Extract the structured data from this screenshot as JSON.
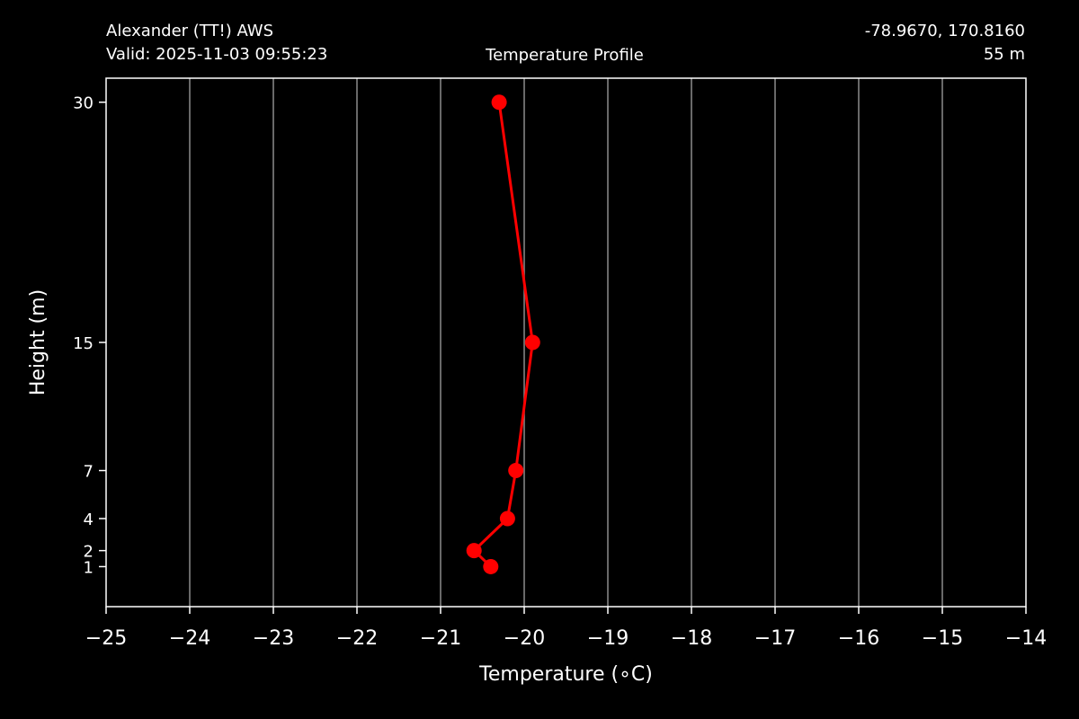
{
  "header": {
    "station": "Alexander (TT!) AWS",
    "valid": "Valid: 2025-11-03 09:55:23",
    "title": "Temperature Profile",
    "coords": "-78.9670, 170.8160",
    "elevation": "55 m"
  },
  "chart_data": {
    "type": "line",
    "title": "Temperature Profile",
    "xlabel": "Temperature (∘C)",
    "ylabel": "Height (m)",
    "xlim": [
      -25,
      -14
    ],
    "ylim": [
      -1.5,
      31.5
    ],
    "x_ticks": [
      -25,
      -24,
      -23,
      -22,
      -21,
      -20,
      -19,
      -18,
      -17,
      -16,
      -15,
      -14
    ],
    "x_tick_labels": [
      "−25",
      "−24",
      "−23",
      "−22",
      "−21",
      "−20",
      "−19",
      "−18",
      "−17",
      "−16",
      "−15",
      "−14"
    ],
    "y_ticks": [
      1,
      2,
      4,
      7,
      15,
      30
    ],
    "y_tick_labels": [
      "1",
      "2",
      "4",
      "7",
      "15",
      "30"
    ],
    "grid": "vertical",
    "grid_color": "#8c8c8c",
    "series": [
      {
        "color": "#ff0000",
        "x": [
          -20.4,
          -20.6,
          -20.2,
          -20.1,
          -19.9,
          -20.3
        ],
        "y": [
          1,
          2,
          4,
          7,
          15,
          30
        ]
      }
    ]
  }
}
